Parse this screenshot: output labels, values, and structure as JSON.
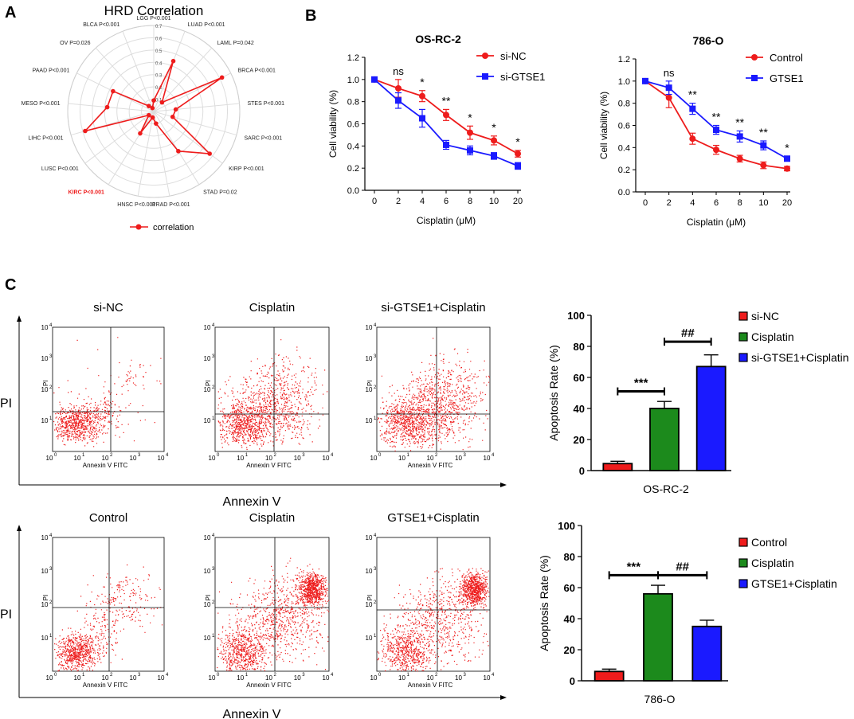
{
  "colors": {
    "red": "#ee1c1c",
    "blue": "#1a1aff",
    "green": "#1c8a1c",
    "black": "#000000",
    "grid": "#dddddd"
  },
  "panel_labels": {
    "a": "A",
    "b": "B",
    "c": "C"
  },
  "chart_data": [
    {
      "id": "radar",
      "type": "radar",
      "title": "HRD Correlation",
      "legend": "correlation",
      "rings": [
        "0.1",
        "0.2",
        "0.3",
        "0.4",
        "0.5",
        "0.6",
        "0.7"
      ],
      "rmax": 0.7,
      "categories": [
        "LGG P<0.001",
        "LUAD P<0.001",
        "LAML P=0.042",
        "BRCA P<0.001",
        "STES P<0.001",
        "SARC P<0.001",
        "KIRP P<0.001",
        "STAD P=0.02",
        "PRAD P<0.001",
        "HNSC P<0.001",
        "KIRC P<0.001",
        "LUSC P<0.001",
        "LIHC P<0.001",
        "MESO P<0.001",
        "PAAD P<0.001",
        "OV P=0.026",
        "BLCA P<0.001"
      ],
      "highlight_index": 10,
      "values": [
        0.09,
        0.44,
        0.1,
        0.62,
        0.18,
        0.16,
        0.57,
        0.38,
        0.1,
        0.05,
        0.21,
        0.05,
        0.58,
        0.38,
        0.37,
        0.06,
        0.03
      ]
    },
    {
      "id": "viability-osrc2",
      "type": "line",
      "title": "OS-RC-2",
      "xlabel": "Cisplatin (μM)",
      "ylabel": "Cell viability (%)",
      "categories": [
        "0",
        "2",
        "4",
        "6",
        "8",
        "10",
        "20"
      ],
      "ylim": [
        0,
        1.2
      ],
      "yticks": [
        "0.0",
        "0.2",
        "0.4",
        "0.6",
        "0.8",
        "1.0",
        "1.2"
      ],
      "series": [
        {
          "name": "si-NC",
          "color": "#ee1c1c",
          "marker": "circle",
          "values": [
            1.0,
            0.92,
            0.85,
            0.68,
            0.52,
            0.45,
            0.33
          ],
          "errors": [
            0.01,
            0.08,
            0.05,
            0.05,
            0.06,
            0.04,
            0.03
          ]
        },
        {
          "name": "si-GTSE1",
          "color": "#1a1aff",
          "marker": "square",
          "values": [
            1.0,
            0.81,
            0.65,
            0.41,
            0.36,
            0.31,
            0.22
          ],
          "errors": [
            0.01,
            0.07,
            0.08,
            0.04,
            0.04,
            0.03,
            0.03
          ]
        }
      ],
      "annotations": [
        "",
        "ns",
        "*",
        "**",
        "*",
        "*",
        "*"
      ]
    },
    {
      "id": "viability-786o",
      "type": "line",
      "title": "786-O",
      "xlabel": "Cisplatin (μM)",
      "ylabel": "Cell viability (%)",
      "categories": [
        "0",
        "2",
        "4",
        "6",
        "8",
        "10",
        "20"
      ],
      "ylim": [
        0,
        1.2
      ],
      "yticks": [
        "0.0",
        "0.2",
        "0.4",
        "0.6",
        "0.8",
        "1.0",
        "1.2"
      ],
      "series": [
        {
          "name": "Control",
          "color": "#ee1c1c",
          "marker": "circle",
          "values": [
            1.0,
            0.85,
            0.48,
            0.38,
            0.3,
            0.24,
            0.21
          ],
          "errors": [
            0.01,
            0.09,
            0.05,
            0.04,
            0.03,
            0.03,
            0.02
          ]
        },
        {
          "name": "GTSE1",
          "color": "#1a1aff",
          "marker": "square",
          "values": [
            1.0,
            0.94,
            0.75,
            0.56,
            0.5,
            0.42,
            0.3
          ],
          "errors": [
            0.01,
            0.06,
            0.05,
            0.04,
            0.05,
            0.04,
            0.02
          ]
        }
      ],
      "annotations": [
        "",
        "ns",
        "**",
        "**",
        "**",
        "**",
        "*"
      ]
    },
    {
      "id": "apoptosis-osrc2",
      "type": "bar",
      "xlabel": "OS-RC-2",
      "ylabel": "Apoptosis Rate (%)",
      "ylim": [
        0,
        100
      ],
      "yticks": [
        "0",
        "20",
        "40",
        "60",
        "80",
        "100"
      ],
      "categories": [
        "si-NC",
        "Cisplatin",
        "si-GTSE1+Cisplatin"
      ],
      "colors": [
        "#ee1c1c",
        "#1c8a1c",
        "#1a1aff"
      ],
      "values": [
        4.5,
        40,
        67
      ],
      "errors": [
        1.5,
        4.5,
        7.5
      ],
      "brackets": [
        {
          "from": 0,
          "to": 1,
          "label": "***",
          "y": 51
        },
        {
          "from": 1,
          "to": 2,
          "label": "##",
          "y": 83
        }
      ]
    },
    {
      "id": "apoptosis-786o",
      "type": "bar",
      "xlabel": "786-O",
      "ylabel": "Apoptosis Rate (%)",
      "ylim": [
        0,
        100
      ],
      "yticks": [
        "0",
        "20",
        "40",
        "60",
        "80",
        "100"
      ],
      "categories": [
        "Control",
        "Cisplatin",
        "GTSE1+Cisplatin"
      ],
      "colors": [
        "#ee1c1c",
        "#1c8a1c",
        "#1a1aff"
      ],
      "values": [
        6,
        56,
        35
      ],
      "errors": [
        1.5,
        5.5,
        4
      ],
      "brackets": [
        {
          "from": 0,
          "to": 1,
          "label": "***",
          "y": 68
        },
        {
          "from": 1,
          "to": 2,
          "label": "##",
          "y": 68
        }
      ]
    }
  ],
  "flow": {
    "row1_titles": [
      "si-NC",
      "Cisplatin",
      "si-GTSE1+Cisplatin"
    ],
    "row2_titles": [
      "Control",
      "Cisplatin",
      "GTSE1+Cisplatin"
    ],
    "y_axis_label": "PI",
    "x_axis_label": "Annexin V",
    "plot_xlabel": "Annexin V FITC",
    "plot_ylabel": "PI",
    "ticks": [
      "10",
      "10",
      "10",
      "10",
      "10"
    ],
    "tick_exponents": [
      "0",
      "1",
      "2",
      "3",
      "4"
    ]
  }
}
